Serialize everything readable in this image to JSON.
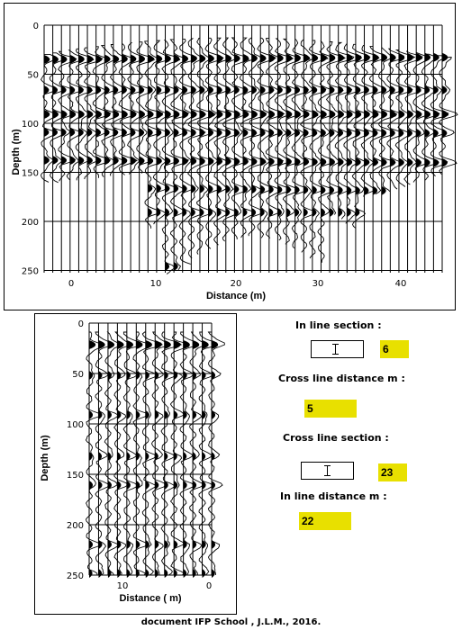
{
  "top_section": {
    "ylabel": "Depth (m)",
    "xlabel": "Distance (m)",
    "y_ticks": [
      "0",
      "50",
      "100",
      "150",
      "200",
      "250"
    ],
    "x_ticks": [
      "0",
      "10",
      "20",
      "30",
      "40"
    ]
  },
  "bottom_section": {
    "ylabel": "Depth (m)",
    "xlabel": "Distance ( m)",
    "y_ticks": [
      "0",
      "50",
      "100",
      "150",
      "200",
      "250"
    ],
    "x_ticks": [
      "10",
      "0"
    ]
  },
  "controls": {
    "inline_section_label": "In line section :",
    "inline_section_value": "6",
    "crossline_distance_label": "Cross line distance m :",
    "crossline_distance_value": "5",
    "crossline_section_label": "Cross line section :",
    "crossline_section_value": "23",
    "inline_distance_label": "In line distance m :",
    "inline_distance_value": "22"
  },
  "footer": "document IFP School , J.L.M., 2016.",
  "colors": {
    "value_box": "#e8e000",
    "ink": "#000000"
  }
}
